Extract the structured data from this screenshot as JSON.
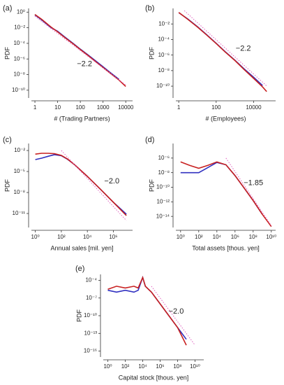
{
  "chart_data": [
    {
      "type": "line",
      "panel": "(a)",
      "xlabel": "# (Trading Partners)",
      "ylabel": "PDF",
      "annotation": "−2.2",
      "log_x": true,
      "log_y": true,
      "xlim": [
        0.7,
        20000
      ],
      "ylim": [
        1e-11,
        3
      ],
      "xticks": [
        1,
        10,
        100,
        1000,
        10000
      ],
      "yticks": [
        {
          "value": 1,
          "label": "10⁰"
        },
        {
          "value": 0.01,
          "label": "10⁻²"
        },
        {
          "value": 0.0001,
          "label": "10⁻⁴"
        },
        {
          "value": 1e-06,
          "label": "10⁻⁶"
        },
        {
          "value": 1e-08,
          "label": "10⁻⁸"
        },
        {
          "value": 1e-10,
          "label": "10⁻¹⁰"
        }
      ],
      "x": [
        1,
        2,
        5,
        10,
        20,
        50,
        100,
        200,
        500,
        1000,
        2000,
        5000,
        10000
      ],
      "series": [
        {
          "color": "#3030c0",
          "values": [
            0.45,
            0.1,
            0.011,
            0.0035,
            0.0007,
            9e-05,
            1.8e-05,
            4e-06,
            5e-07,
            1e-07,
            2e-08,
            2.5e-09,
            null
          ]
        },
        {
          "color": "#c82020",
          "values": [
            0.5,
            0.12,
            0.013,
            0.003,
            0.0006,
            8e-05,
            1.6e-05,
            3.5e-06,
            4e-07,
            8e-08,
            1.6e-08,
            2e-09,
            3e-10
          ]
        },
        {
          "color": "#e060c0",
          "dash": true,
          "x": [
            1,
            10000
          ],
          "values": [
            0.3,
            4.7e-10
          ]
        }
      ]
    },
    {
      "type": "line",
      "panel": "(b)",
      "xlabel": "# (Employees)",
      "ylabel": "PDF",
      "annotation": "−2.2",
      "log_x": true,
      "log_y": true,
      "xlim": [
        0.7,
        150000
      ],
      "ylim": [
        3e-12,
        1
      ],
      "xticks": [
        1,
        100,
        10000
      ],
      "yticks": [
        {
          "value": 0.01,
          "label": "10⁻²"
        },
        {
          "value": 0.0001,
          "label": "10⁻⁴"
        },
        {
          "value": 1e-06,
          "label": "10⁻⁶"
        },
        {
          "value": 1e-08,
          "label": "10⁻⁸"
        },
        {
          "value": 1e-10,
          "label": "10⁻¹⁰"
        }
      ],
      "x": [
        1,
        3,
        10,
        30,
        100,
        300,
        1000,
        3000,
        10000,
        30000,
        50000
      ],
      "series": [
        {
          "color": "#3030c0",
          "values": [
            0.28,
            0.045,
            0.0045,
            0.00045,
            3.2e-05,
            2.8e-06,
            2.2e-07,
            1.8e-08,
            1.4e-09,
            1.2e-10,
            null
          ]
        },
        {
          "color": "#c82020",
          "values": [
            0.3,
            0.04,
            0.004,
            0.0004,
            3e-05,
            2.5e-06,
            2e-07,
            1.5e-08,
            1e-09,
            8e-11,
            2e-11
          ]
        },
        {
          "color": "#e060c0",
          "dash": true,
          "x": [
            2,
            50000
          ],
          "values": [
            0.5,
            1.06e-10
          ]
        }
      ]
    },
    {
      "type": "line",
      "panel": "(c)",
      "xlabel": "Annual sales [mil. yen]",
      "ylabel": "PDF",
      "annotation": "−2.0",
      "log_x": true,
      "log_y": true,
      "xlim": [
        0.5,
        30000000
      ],
      "ylim": [
        1e-13,
        0.1
      ],
      "xticks": [
        {
          "value": 1,
          "label": "10⁰"
        },
        {
          "value": 100,
          "label": "10²"
        },
        {
          "value": 10000,
          "label": "10⁴"
        },
        {
          "value": 1000000,
          "label": "10⁶"
        }
      ],
      "yticks": [
        {
          "value": 0.01,
          "label": "10⁻²"
        },
        {
          "value": 1e-05,
          "label": "10⁻⁵"
        },
        {
          "value": 1e-08,
          "label": "10⁻⁸"
        },
        {
          "value": 1e-11,
          "label": "10⁻¹¹"
        }
      ],
      "x": [
        1,
        3,
        10,
        30,
        100,
        300,
        1000,
        10000,
        100000,
        1000000,
        10000000
      ],
      "series": [
        {
          "color": "#3030c0",
          "values": [
            0.0005,
            0.0008,
            0.0015,
            0.0025,
            0.0018,
            0.00055,
            0.0001,
            2e-06,
            3e-08,
            4e-10,
            8e-12
          ]
        },
        {
          "color": "#c82020",
          "values": [
            0.003,
            0.004,
            0.004,
            0.0035,
            0.002,
            0.0006,
            0.0001,
            2e-06,
            3e-08,
            4e-10,
            5e-12
          ]
        },
        {
          "color": "#e060c0",
          "dash": true,
          "x": [
            100,
            10000000
          ],
          "values": [
            0.01,
            1e-12
          ]
        }
      ]
    },
    {
      "type": "line",
      "panel": "(d)",
      "xlabel": "Total assets [thous. yen]",
      "ylabel": "PDF",
      "annotation": "−1.85",
      "log_x": true,
      "log_y": true,
      "xlim": [
        0.3,
        30000000000
      ],
      "ylim": [
        3e-16,
        0.0001
      ],
      "xticks": [
        {
          "value": 1,
          "label": "10⁰"
        },
        {
          "value": 100,
          "label": "10²"
        },
        {
          "value": 10000,
          "label": "10⁴"
        },
        {
          "value": 1000000,
          "label": "10⁶"
        },
        {
          "value": 100000000,
          "label": "10⁸"
        },
        {
          "value": 10000000000,
          "label": "10¹⁰"
        }
      ],
      "yticks": [
        {
          "value": 1e-06,
          "label": "10⁻⁶"
        },
        {
          "value": 1e-08,
          "label": "10⁻⁸"
        },
        {
          "value": 1e-10,
          "label": "10⁻¹⁰"
        },
        {
          "value": 1e-12,
          "label": "10⁻¹²"
        },
        {
          "value": 1e-14,
          "label": "10⁻¹⁴"
        }
      ],
      "x": [
        1,
        10,
        100,
        1000,
        10000,
        100000,
        1000000,
        10000000,
        100000000,
        1000000000,
        10000000000
      ],
      "series": [
        {
          "color": "#3030c0",
          "values": [
            1e-08,
            1e-08,
            1e-08,
            5e-08,
            2.5e-07,
            1.2e-07,
            4e-09,
            8e-11,
            1.5e-12,
            2e-14,
            null
          ]
        },
        {
          "color": "#c82020",
          "values": [
            3e-07,
            1e-07,
            4e-08,
            1e-07,
            3e-07,
            1.2e-07,
            4e-09,
            8e-11,
            1.5e-12,
            2e-14,
            4e-16
          ]
        },
        {
          "color": "#e060c0",
          "dash": true,
          "x": [
            100000,
            10000000000
          ],
          "values": [
            1e-06,
            5.6e-16
          ]
        }
      ]
    },
    {
      "type": "line",
      "panel": "(e)",
      "xlabel": "Capital stock [thous. yen]",
      "ylabel": "PDF",
      "annotation": "−2.0",
      "log_x": true,
      "log_y": true,
      "xlim": [
        0.3,
        100000000000
      ],
      "ylim": [
        1e-17,
        0.001
      ],
      "xticks": [
        {
          "value": 1,
          "label": "10⁰"
        },
        {
          "value": 100,
          "label": "10²"
        },
        {
          "value": 10000,
          "label": "10⁴"
        },
        {
          "value": 1000000,
          "label": "10⁶"
        },
        {
          "value": 100000000,
          "label": "10⁸"
        },
        {
          "value": 10000000000,
          "label": "10¹⁰"
        }
      ],
      "yticks": [
        {
          "value": 0.0001,
          "label": "10⁻⁴"
        },
        {
          "value": 1e-07,
          "label": "10⁻⁷"
        },
        {
          "value": 1e-10,
          "label": "10⁻¹⁰"
        },
        {
          "value": 1e-13,
          "label": "10⁻¹³"
        },
        {
          "value": 1e-16,
          "label": "10⁻¹⁶"
        }
      ],
      "x": [
        1,
        10,
        100,
        1000,
        3000,
        10000,
        20000,
        100000,
        1000000,
        10000000,
        100000000,
        1000000000
      ],
      "series": [
        {
          "color": "#3030c0",
          "values": [
            2e-06,
            1e-06,
            2e-06,
            1e-06,
            2e-06,
            0.0003,
            1e-05,
            1e-06,
            1e-08,
            1e-10,
            1e-12,
            1e-14
          ]
        },
        {
          "color": "#c82020",
          "values": [
            3e-06,
            1e-05,
            5e-06,
            1e-05,
            5e-06,
            0.0003,
            1e-05,
            1e-06,
            1e-08,
            1e-10,
            1e-12,
            1e-15
          ]
        },
        {
          "color": "#e060c0",
          "dash": true,
          "x": [
            100000,
            10000000000
          ],
          "values": [
            1e-05,
            1e-15
          ]
        }
      ]
    }
  ]
}
